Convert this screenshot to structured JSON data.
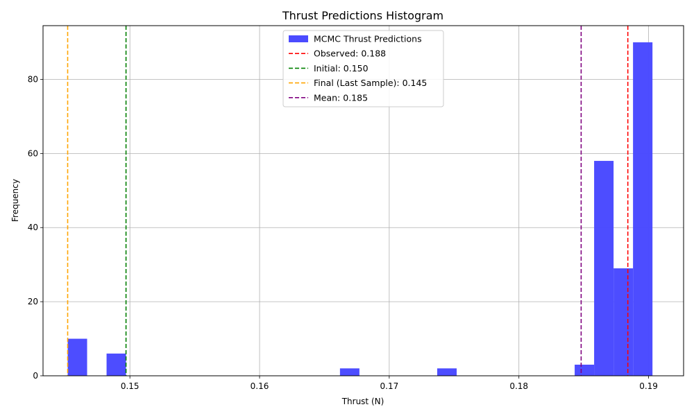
{
  "chart_data": {
    "type": "bar",
    "title": "Thrust Predictions Histogram",
    "xlabel": "Thrust (N)",
    "ylabel": "Frequency",
    "xlim": [
      0.1433,
      0.1927
    ],
    "ylim": [
      0,
      94.5
    ],
    "grid": true,
    "legend_position": "top-center",
    "bar_color": "#4B4BFF",
    "xticks": [
      {
        "value": 0.15,
        "label": "0.15"
      },
      {
        "value": 0.16,
        "label": "0.16"
      },
      {
        "value": 0.17,
        "label": "0.17"
      },
      {
        "value": 0.18,
        "label": "0.18"
      },
      {
        "value": 0.19,
        "label": "0.19"
      }
    ],
    "yticks": [
      {
        "value": 0,
        "label": "0"
      },
      {
        "value": 20,
        "label": "20"
      },
      {
        "value": 40,
        "label": "40"
      },
      {
        "value": 60,
        "label": "60"
      },
      {
        "value": 80,
        "label": "80"
      }
    ],
    "bins": [
      {
        "x0": 0.1452,
        "x1": 0.1467,
        "count": 10
      },
      {
        "x0": 0.1482,
        "x1": 0.1497,
        "count": 6
      },
      {
        "x0": 0.1662,
        "x1": 0.1677,
        "count": 2
      },
      {
        "x0": 0.1737,
        "x1": 0.1752,
        "count": 2
      },
      {
        "x0": 0.1843,
        "x1": 0.1858,
        "count": 3
      },
      {
        "x0": 0.1858,
        "x1": 0.1873,
        "count": 58
      },
      {
        "x0": 0.1873,
        "x1": 0.1888,
        "count": 29
      },
      {
        "x0": 0.1888,
        "x1": 0.1903,
        "count": 90
      }
    ],
    "vlines": [
      {
        "name": "observed",
        "x": 0.1884,
        "color": "#FF0000"
      },
      {
        "name": "initial",
        "x": 0.1497,
        "color": "#008000"
      },
      {
        "name": "final",
        "x": 0.1452,
        "color": "#FFA500"
      },
      {
        "name": "mean",
        "x": 0.1848,
        "color": "#800080"
      }
    ],
    "legend": [
      {
        "label": "MCMC Thrust Predictions",
        "kind": "patch",
        "color": "#4B4BFF"
      },
      {
        "label": "Observed: 0.188",
        "kind": "dash",
        "color": "#FF0000"
      },
      {
        "label": "Initial: 0.150",
        "kind": "dash",
        "color": "#008000"
      },
      {
        "label": "Final (Last Sample): 0.145",
        "kind": "dash",
        "color": "#FFA500"
      },
      {
        "label": "Mean: 0.185",
        "kind": "dash",
        "color": "#800080"
      }
    ]
  }
}
